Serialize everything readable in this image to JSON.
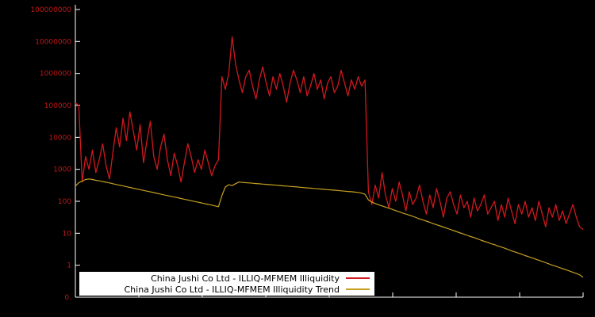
{
  "chart_data": {
    "type": "line",
    "title": "",
    "xlabel": "",
    "ylabel": "",
    "y_scale": "log",
    "ylim": [
      0.1,
      100000000
    ],
    "x_count": 150,
    "grid": false,
    "background": "#000000",
    "axis_color": "#ffffff",
    "tick_label_color": "#c01818",
    "y_tick_labels": [
      "100000000",
      "10000000",
      "1000000",
      "100000",
      "10000",
      "1000",
      "100",
      "10",
      "1",
      "0."
    ],
    "legend": {
      "position": "bottom-center",
      "background": "#ffffff",
      "text_color": "#000000"
    },
    "series": [
      {
        "name": "China Jushi Co Ltd - ILLIQ-MFMEM Illiquidity",
        "color": "#d0181f",
        "values": [
          120000,
          100000,
          400,
          2500,
          1000,
          4000,
          800,
          2000,
          6300,
          1300,
          500,
          3200,
          20000,
          5000,
          40000,
          7900,
          63000,
          16000,
          4000,
          25000,
          1600,
          7900,
          32000,
          2500,
          1000,
          5000,
          12600,
          2000,
          630,
          3200,
          1300,
          400,
          1600,
          6300,
          2500,
          800,
          2000,
          1000,
          4000,
          1600,
          630,
          1300,
          2000,
          790000,
          320000,
          1000000,
          14000000,
          2000000,
          630000,
          250000,
          790000,
          1260000,
          400000,
          160000,
          630000,
          1600000,
          500000,
          200000,
          790000,
          320000,
          1000000,
          400000,
          126000,
          500000,
          1260000,
          630000,
          250000,
          790000,
          200000,
          400000,
          1000000,
          320000,
          630000,
          160000,
          500000,
          790000,
          250000,
          400000,
          1260000,
          500000,
          200000,
          630000,
          320000,
          790000,
          400000,
          630000,
          200,
          79,
          320,
          126,
          790,
          158,
          63,
          250,
          100,
          400,
          158,
          50,
          200,
          79,
          126,
          320,
          100,
          40,
          158,
          63,
          250,
          100,
          32,
          126,
          200,
          79,
          40,
          158,
          63,
          100,
          32,
          126,
          50,
          79,
          158,
          40,
          63,
          100,
          25,
          79,
          32,
          126,
          50,
          20,
          79,
          40,
          100,
          32,
          63,
          25,
          100,
          40,
          16,
          63,
          32,
          79,
          25,
          50,
          20,
          40,
          79,
          32,
          16,
          13
        ]
      },
      {
        "name": "China Jushi Co Ltd - ILLIQ-MFMEM Illiquidity Trend",
        "color": "#c5a021",
        "values": [
          300,
          380,
          430,
          480,
          500,
          480,
          455,
          435,
          415,
          395,
          375,
          355,
          335,
          318,
          302,
          286,
          271,
          257,
          244,
          231,
          219,
          208,
          197,
          187,
          177,
          168,
          159,
          151,
          143,
          136,
          129,
          122,
          116,
          110,
          104,
          99,
          94,
          89,
          84,
          80,
          76,
          72,
          68,
          150,
          280,
          330,
          310,
          355,
          400,
          390,
          382,
          375,
          368,
          360,
          353,
          346,
          339,
          332,
          325,
          318,
          311,
          305,
          299,
          293,
          287,
          281,
          275,
          269,
          263,
          258,
          252,
          247,
          242,
          237,
          232,
          227,
          222,
          217,
          212,
          208,
          203,
          199,
          194,
          190,
          180,
          165,
          110,
          95,
          85,
          78,
          72,
          66,
          61,
          56,
          51,
          47,
          43,
          40,
          37,
          34,
          31,
          28,
          26,
          24,
          22,
          20,
          18.5,
          17,
          15.6,
          14.4,
          13.2,
          12.1,
          11.1,
          10.2,
          9.4,
          8.6,
          7.9,
          7.3,
          6.7,
          6.1,
          5.6,
          5.2,
          4.7,
          4.4,
          4.0,
          3.7,
          3.4,
          3.1,
          2.8,
          2.6,
          2.4,
          2.2,
          2.0,
          1.85,
          1.7,
          1.56,
          1.43,
          1.31,
          1.2,
          1.1,
          1.0,
          0.93,
          0.85,
          0.78,
          0.72,
          0.66,
          0.6,
          0.55,
          0.5,
          0.42
        ]
      }
    ]
  }
}
